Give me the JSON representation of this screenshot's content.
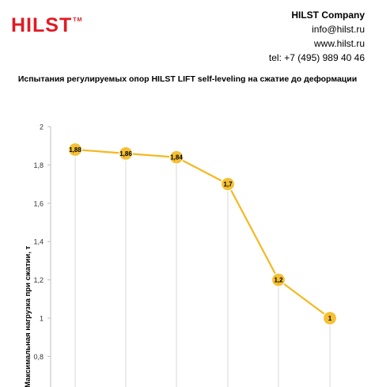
{
  "header": {
    "logo_text": "HILST",
    "logo_mark": "TM",
    "company": "HILST Company",
    "email": "info@hilst.ru",
    "website": "www.hilst.ru",
    "phone": "tel: +7 (495) 989 40 46"
  },
  "colors": {
    "brand": "#e01b24",
    "line": "#f5b820",
    "marker": "#f5c034",
    "grid": "#d9d9d9"
  },
  "chart_data": {
    "type": "line",
    "title": "Испытания регулируемых опор HILST LIFT self-leveling  на сжатие  до деформации",
    "xlabel": "",
    "ylabel": "Максимальная нагрузка при сжатии, т",
    "ylim": [
      0.7,
      2
    ],
    "yticks": [
      "2",
      "1,8",
      "1,6",
      "1,4",
      "1,2",
      "1",
      "0,8"
    ],
    "ytick_values": [
      2,
      1.8,
      1.6,
      1.4,
      1.2,
      1,
      0.8
    ],
    "grid": "vertical",
    "series": [
      {
        "values": [
          1.88,
          1.86,
          1.84,
          1.7,
          1.2,
          1
        ],
        "labels": [
          "1,88",
          "1,86",
          "1,84",
          "1,7",
          "1,2",
          "1"
        ]
      }
    ]
  }
}
